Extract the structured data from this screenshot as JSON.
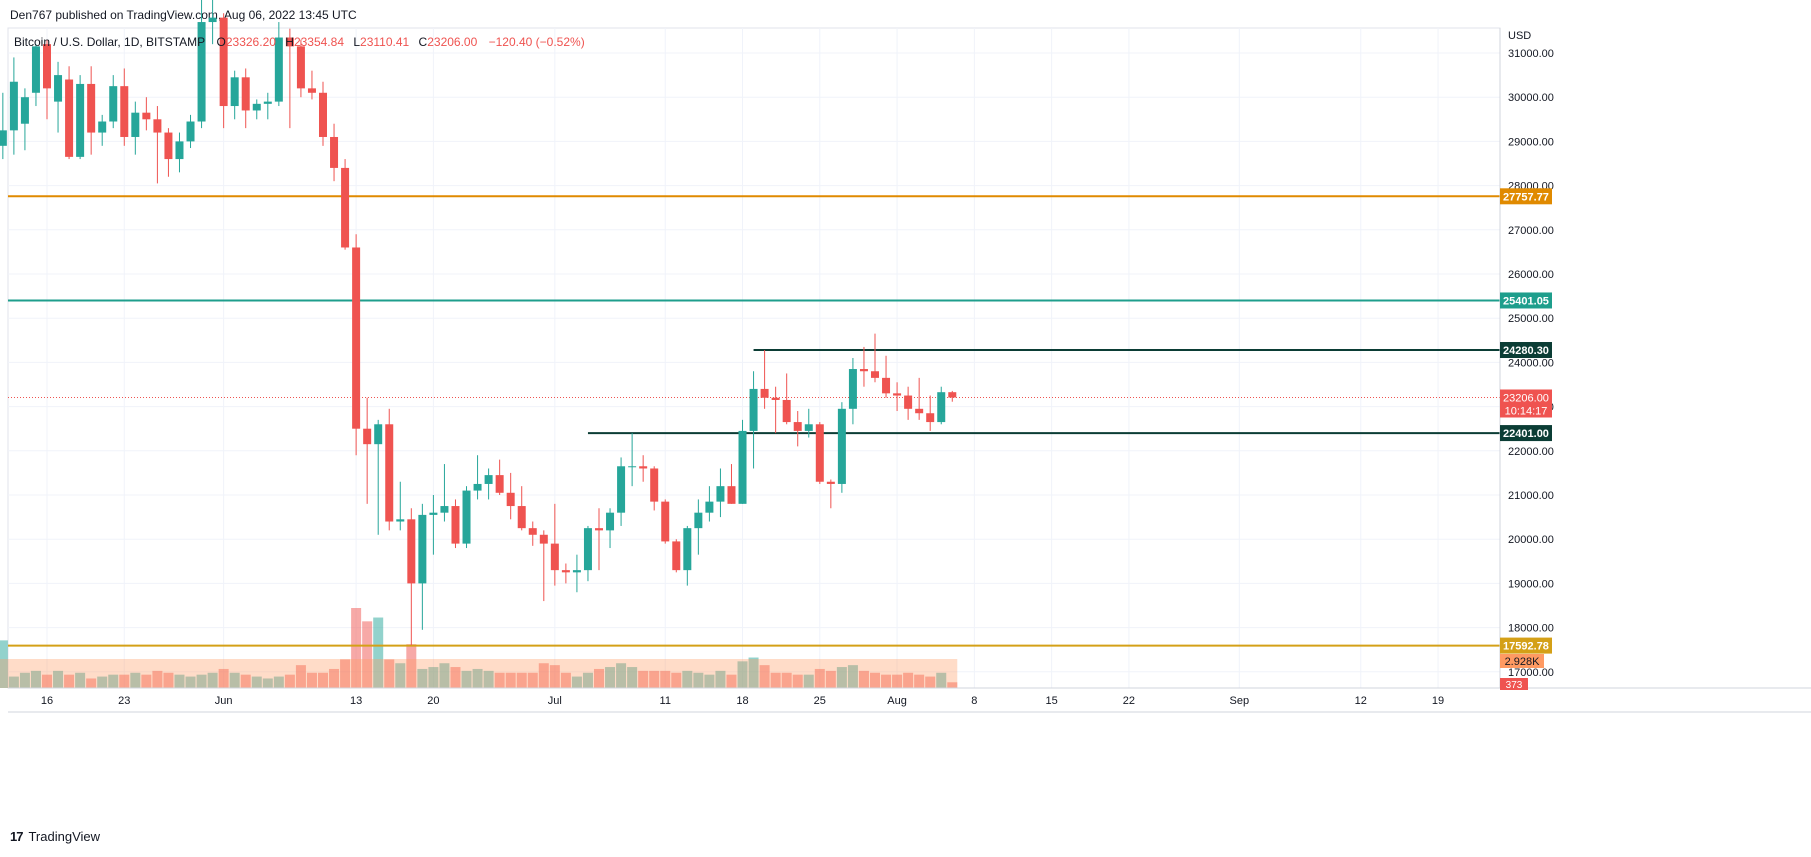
{
  "header": {
    "published_by": "Den767 published on TradingView.com, Aug 06, 2022 13:45 UTC"
  },
  "legend": {
    "symbol": "Bitcoin / U.S. Dollar, 1D, BITSTAMP",
    "o_label": "O",
    "o_value": "23326.20",
    "h_label": "H",
    "h_value": "23354.84",
    "l_label": "L",
    "l_value": "23110.41",
    "c_label": "C",
    "c_value": "23206.00",
    "change": "−120.40 (−0.52%)"
  },
  "footer": {
    "brand": "TradingView",
    "logo_mark": "17"
  },
  "colors": {
    "up": "#26a69a",
    "down": "#ef5350",
    "orange_line": "#e08a00",
    "teal_line": "#1e9e8c",
    "dark_line": "#0b3d35",
    "support_line": "#d4a017",
    "grid": "#f0f3fa"
  },
  "chart_data": {
    "type": "candlestick",
    "currency": "USD",
    "y_ticks": [
      "31000.00",
      "30000.00",
      "29000.00",
      "28000.00",
      "27000.00",
      "26000.00",
      "25000.00",
      "24000.00",
      "23000.00",
      "22000.00",
      "21000.00",
      "20000.00",
      "19000.00",
      "18000.00",
      "17000.00"
    ],
    "ylim": [
      16800,
      31600
    ],
    "x_ticks": [
      {
        "label": "16",
        "date": "2022-05-16"
      },
      {
        "label": "23",
        "date": "2022-05-23"
      },
      {
        "label": "Jun",
        "date": "2022-06-01"
      },
      {
        "label": "13",
        "date": "2022-06-13"
      },
      {
        "label": "20",
        "date": "2022-06-20"
      },
      {
        "label": "Jul",
        "date": "2022-07-01"
      },
      {
        "label": "11",
        "date": "2022-07-11"
      },
      {
        "label": "18",
        "date": "2022-07-18"
      },
      {
        "label": "25",
        "date": "2022-07-25"
      },
      {
        "label": "Aug",
        "date": "2022-08-01"
      },
      {
        "label": "8",
        "date": "2022-08-08"
      },
      {
        "label": "15",
        "date": "2022-08-15"
      },
      {
        "label": "22",
        "date": "2022-08-22"
      },
      {
        "label": "Sep",
        "date": "2022-09-01"
      },
      {
        "label": "12",
        "date": "2022-09-12"
      },
      {
        "label": "19",
        "date": "2022-09-19"
      }
    ],
    "levels": [
      {
        "value": 27757.77,
        "label": "27757.77",
        "color": "#e08a00",
        "span": "full"
      },
      {
        "value": 25401.05,
        "label": "25401.05",
        "color": "#1e9e8c",
        "span": "full"
      },
      {
        "value": 24280.3,
        "label": "24280.30",
        "color": "#0b3d35",
        "from_date": "2022-07-19"
      },
      {
        "value": 22401.0,
        "label": "22401.00",
        "color": "#0b3d35",
        "from_date": "2022-07-04"
      },
      {
        "value": 17592.78,
        "label": "17592.78",
        "color": "#d4a017",
        "span": "full"
      }
    ],
    "last_price": {
      "value": 23206.0,
      "label": "23206.00",
      "countdown": "10:14:17"
    },
    "volume_badges": [
      "2.928K",
      "373"
    ],
    "candles": [
      {
        "d": "2022-05-12",
        "o": 28900,
        "h": 30100,
        "l": 28600,
        "c": 29250
      },
      {
        "d": "2022-05-13",
        "o": 29250,
        "h": 30900,
        "l": 28700,
        "c": 30350
      },
      {
        "d": "2022-05-14",
        "o": 29400,
        "h": 30200,
        "l": 28800,
        "c": 30000
      },
      {
        "d": "2022-05-15",
        "o": 30100,
        "h": 31200,
        "l": 29800,
        "c": 31150
      },
      {
        "d": "2022-05-16",
        "o": 31200,
        "h": 31300,
        "l": 29500,
        "c": 30200
      },
      {
        "d": "2022-05-17",
        "o": 29900,
        "h": 30800,
        "l": 29200,
        "c": 30500
      },
      {
        "d": "2022-05-18",
        "o": 30400,
        "h": 30700,
        "l": 28600,
        "c": 28650
      },
      {
        "d": "2022-05-19",
        "o": 28650,
        "h": 30500,
        "l": 28600,
        "c": 30300
      },
      {
        "d": "2022-05-20",
        "o": 30300,
        "h": 30700,
        "l": 28700,
        "c": 29200
      },
      {
        "d": "2022-05-21",
        "o": 29200,
        "h": 29600,
        "l": 28900,
        "c": 29450
      },
      {
        "d": "2022-05-22",
        "o": 29450,
        "h": 30500,
        "l": 29300,
        "c": 30250
      },
      {
        "d": "2022-05-23",
        "o": 30250,
        "h": 30650,
        "l": 28900,
        "c": 29100
      },
      {
        "d": "2022-05-24",
        "o": 29100,
        "h": 29900,
        "l": 28700,
        "c": 29650
      },
      {
        "d": "2022-05-25",
        "o": 29650,
        "h": 30000,
        "l": 29250,
        "c": 29500
      },
      {
        "d": "2022-05-26",
        "o": 29500,
        "h": 29800,
        "l": 28050,
        "c": 29200
      },
      {
        "d": "2022-05-27",
        "o": 29200,
        "h": 29300,
        "l": 28200,
        "c": 28600
      },
      {
        "d": "2022-05-28",
        "o": 28600,
        "h": 29200,
        "l": 28300,
        "c": 29000
      },
      {
        "d": "2022-05-29",
        "o": 29000,
        "h": 29600,
        "l": 28850,
        "c": 29450
      },
      {
        "d": "2022-05-30",
        "o": 29450,
        "h": 32200,
        "l": 29300,
        "c": 31700
      },
      {
        "d": "2022-05-31",
        "o": 31700,
        "h": 32300,
        "l": 31200,
        "c": 31800
      },
      {
        "d": "2022-06-01",
        "o": 31800,
        "h": 31900,
        "l": 29300,
        "c": 29800
      },
      {
        "d": "2022-06-02",
        "o": 29800,
        "h": 30600,
        "l": 29500,
        "c": 30450
      },
      {
        "d": "2022-06-03",
        "o": 30450,
        "h": 30650,
        "l": 29300,
        "c": 29700
      },
      {
        "d": "2022-06-04",
        "o": 29700,
        "h": 29950,
        "l": 29500,
        "c": 29850
      },
      {
        "d": "2022-06-05",
        "o": 29850,
        "h": 30100,
        "l": 29500,
        "c": 29900
      },
      {
        "d": "2022-06-06",
        "o": 29900,
        "h": 31700,
        "l": 29800,
        "c": 31350
      },
      {
        "d": "2022-06-07",
        "o": 31350,
        "h": 31550,
        "l": 29300,
        "c": 31150
      },
      {
        "d": "2022-06-08",
        "o": 31150,
        "h": 31300,
        "l": 30000,
        "c": 30200
      },
      {
        "d": "2022-06-09",
        "o": 30200,
        "h": 30600,
        "l": 29950,
        "c": 30100
      },
      {
        "d": "2022-06-10",
        "o": 30100,
        "h": 30350,
        "l": 28900,
        "c": 29100
      },
      {
        "d": "2022-06-11",
        "o": 29100,
        "h": 29400,
        "l": 28100,
        "c": 28400
      },
      {
        "d": "2022-06-12",
        "o": 28400,
        "h": 28600,
        "l": 26550,
        "c": 26600
      },
      {
        "d": "2022-06-13",
        "o": 26600,
        "h": 26900,
        "l": 21900,
        "c": 22500
      },
      {
        "d": "2022-06-14",
        "o": 22500,
        "h": 23200,
        "l": 20800,
        "c": 22150
      },
      {
        "d": "2022-06-15",
        "o": 22150,
        "h": 22700,
        "l": 20100,
        "c": 22600
      },
      {
        "d": "2022-06-16",
        "o": 22600,
        "h": 22950,
        "l": 20200,
        "c": 20400
      },
      {
        "d": "2022-06-17",
        "o": 20400,
        "h": 21300,
        "l": 20200,
        "c": 20450
      },
      {
        "d": "2022-06-18",
        "o": 20450,
        "h": 20700,
        "l": 17600,
        "c": 19000
      },
      {
        "d": "2022-06-19",
        "o": 19000,
        "h": 20800,
        "l": 17950,
        "c": 20550
      },
      {
        "d": "2022-06-20",
        "o": 20550,
        "h": 21000,
        "l": 19650,
        "c": 20600
      },
      {
        "d": "2022-06-21",
        "o": 20600,
        "h": 21700,
        "l": 20400,
        "c": 20750
      },
      {
        "d": "2022-06-22",
        "o": 20750,
        "h": 20900,
        "l": 19800,
        "c": 19900
      },
      {
        "d": "2022-06-23",
        "o": 19900,
        "h": 21200,
        "l": 19800,
        "c": 21100
      },
      {
        "d": "2022-06-24",
        "o": 21100,
        "h": 21900,
        "l": 20900,
        "c": 21250
      },
      {
        "d": "2022-06-25",
        "o": 21250,
        "h": 21600,
        "l": 20900,
        "c": 21450
      },
      {
        "d": "2022-06-26",
        "o": 21450,
        "h": 21800,
        "l": 21000,
        "c": 21050
      },
      {
        "d": "2022-06-27",
        "o": 21050,
        "h": 21500,
        "l": 20450,
        "c": 20750
      },
      {
        "d": "2022-06-28",
        "o": 20750,
        "h": 21200,
        "l": 20200,
        "c": 20250
      },
      {
        "d": "2022-06-29",
        "o": 20250,
        "h": 20400,
        "l": 19850,
        "c": 20100
      },
      {
        "d": "2022-06-30",
        "o": 20100,
        "h": 20200,
        "l": 18600,
        "c": 19900
      },
      {
        "d": "2022-07-01",
        "o": 19900,
        "h": 20800,
        "l": 18950,
        "c": 19300
      },
      {
        "d": "2022-07-02",
        "o": 19300,
        "h": 19450,
        "l": 19000,
        "c": 19250
      },
      {
        "d": "2022-07-03",
        "o": 19250,
        "h": 19650,
        "l": 18800,
        "c": 19300
      },
      {
        "d": "2022-07-04",
        "o": 19300,
        "h": 20300,
        "l": 19050,
        "c": 20250
      },
      {
        "d": "2022-07-05",
        "o": 20250,
        "h": 20700,
        "l": 19300,
        "c": 20200
      },
      {
        "d": "2022-07-06",
        "o": 20200,
        "h": 20700,
        "l": 19800,
        "c": 20600
      },
      {
        "d": "2022-07-07",
        "o": 20600,
        "h": 21850,
        "l": 20300,
        "c": 21650
      },
      {
        "d": "2022-07-08",
        "o": 21650,
        "h": 22400,
        "l": 21200,
        "c": 21650
      },
      {
        "d": "2022-07-09",
        "o": 21650,
        "h": 21900,
        "l": 21300,
        "c": 21600
      },
      {
        "d": "2022-07-10",
        "o": 21600,
        "h": 21650,
        "l": 20650,
        "c": 20850
      },
      {
        "d": "2022-07-11",
        "o": 20850,
        "h": 20900,
        "l": 19900,
        "c": 19950
      },
      {
        "d": "2022-07-12",
        "o": 19950,
        "h": 20000,
        "l": 19250,
        "c": 19300
      },
      {
        "d": "2022-07-13",
        "o": 19300,
        "h": 20300,
        "l": 18950,
        "c": 20250
      },
      {
        "d": "2022-07-14",
        "o": 20250,
        "h": 20900,
        "l": 19650,
        "c": 20600
      },
      {
        "d": "2022-07-15",
        "o": 20600,
        "h": 21200,
        "l": 20400,
        "c": 20850
      },
      {
        "d": "2022-07-16",
        "o": 20850,
        "h": 21600,
        "l": 20500,
        "c": 21200
      },
      {
        "d": "2022-07-17",
        "o": 21200,
        "h": 21700,
        "l": 20800,
        "c": 20800
      },
      {
        "d": "2022-07-18",
        "o": 20800,
        "h": 22700,
        "l": 20800,
        "c": 22450
      },
      {
        "d": "2022-07-19",
        "o": 22450,
        "h": 23800,
        "l": 21600,
        "c": 23400
      },
      {
        "d": "2022-07-20",
        "o": 23400,
        "h": 24280,
        "l": 22950,
        "c": 23200
      },
      {
        "d": "2022-07-21",
        "o": 23200,
        "h": 23450,
        "l": 22400,
        "c": 23150
      },
      {
        "d": "2022-07-22",
        "o": 23150,
        "h": 23750,
        "l": 22600,
        "c": 22650
      },
      {
        "d": "2022-07-23",
        "o": 22650,
        "h": 22900,
        "l": 22100,
        "c": 22450
      },
      {
        "d": "2022-07-24",
        "o": 22450,
        "h": 22950,
        "l": 22300,
        "c": 22600
      },
      {
        "d": "2022-07-25",
        "o": 22600,
        "h": 22650,
        "l": 21250,
        "c": 21300
      },
      {
        "d": "2022-07-26",
        "o": 21300,
        "h": 21350,
        "l": 20700,
        "c": 21250
      },
      {
        "d": "2022-07-27",
        "o": 21250,
        "h": 23100,
        "l": 21050,
        "c": 22950
      },
      {
        "d": "2022-07-28",
        "o": 22950,
        "h": 24100,
        "l": 22600,
        "c": 23850
      },
      {
        "d": "2022-07-29",
        "o": 23850,
        "h": 24350,
        "l": 23450,
        "c": 23800
      },
      {
        "d": "2022-07-30",
        "o": 23800,
        "h": 24650,
        "l": 23550,
        "c": 23650
      },
      {
        "d": "2022-07-31",
        "o": 23650,
        "h": 24150,
        "l": 23200,
        "c": 23300
      },
      {
        "d": "2022-08-01",
        "o": 23300,
        "h": 23550,
        "l": 22900,
        "c": 23250
      },
      {
        "d": "2022-08-02",
        "o": 23250,
        "h": 23450,
        "l": 22700,
        "c": 22950
      },
      {
        "d": "2022-08-03",
        "o": 22950,
        "h": 23650,
        "l": 22700,
        "c": 22850
      },
      {
        "d": "2022-08-04",
        "o": 22850,
        "h": 23250,
        "l": 22450,
        "c": 22650
      },
      {
        "d": "2022-08-05",
        "o": 22650,
        "h": 23450,
        "l": 22600,
        "c": 23326
      },
      {
        "d": "2022-08-06",
        "o": 23326.2,
        "h": 23354.84,
        "l": 23110.41,
        "c": 23206.0
      }
    ],
    "volumes": [
      2.5,
      0.6,
      0.8,
      0.9,
      0.7,
      0.9,
      0.7,
      0.8,
      0.5,
      0.6,
      0.7,
      0.7,
      0.8,
      0.7,
      0.9,
      0.8,
      0.7,
      0.6,
      0.7,
      0.8,
      1.0,
      0.8,
      0.7,
      0.6,
      0.5,
      0.6,
      0.7,
      1.2,
      0.8,
      0.8,
      1.0,
      1.5,
      4.2,
      3.5,
      3.7,
      1.5,
      1.3,
      2.3,
      1.0,
      1.1,
      1.3,
      1.1,
      0.9,
      1.0,
      0.9,
      0.8,
      0.8,
      0.8,
      0.8,
      1.3,
      1.2,
      0.8,
      0.6,
      0.8,
      1.0,
      1.1,
      1.3,
      1.1,
      0.9,
      0.9,
      0.9,
      0.8,
      0.9,
      0.8,
      0.7,
      0.9,
      0.7,
      1.4,
      1.6,
      1.2,
      0.8,
      0.8,
      0.7,
      0.7,
      1.0,
      0.9,
      1.1,
      1.2,
      0.9,
      0.8,
      0.7,
      0.7,
      0.8,
      0.7,
      0.6,
      0.8,
      0.3
    ],
    "volume_max": 4.2
  }
}
